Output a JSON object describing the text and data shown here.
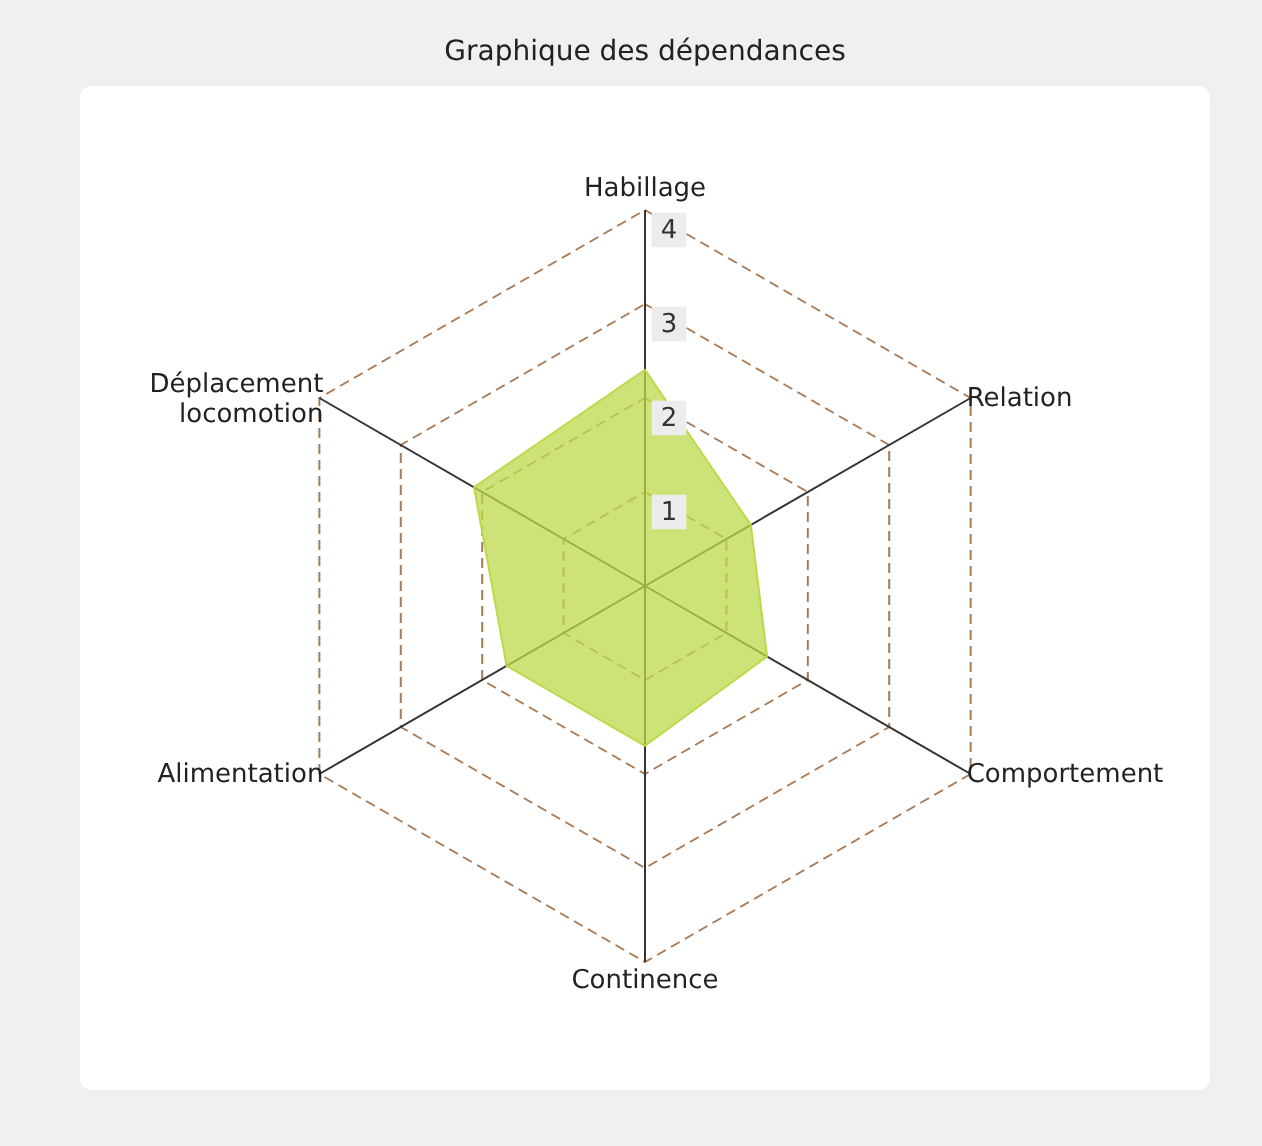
{
  "chart_data": {
    "type": "radar",
    "title": "Graphique des dépendances",
    "categories": [
      "Habillage",
      "Relation",
      "Comportement",
      "Continence",
      "Alimentation",
      "Déplacement\nlocomotion"
    ],
    "series": [
      {
        "color": "#bcd94a",
        "values": [
          2.3,
          1.3,
          1.5,
          1.7,
          1.7,
          2.1
        ]
      }
    ],
    "ylim": [
      0,
      4
    ],
    "yticks": [
      1,
      2,
      3,
      4
    ],
    "grid": true
  }
}
